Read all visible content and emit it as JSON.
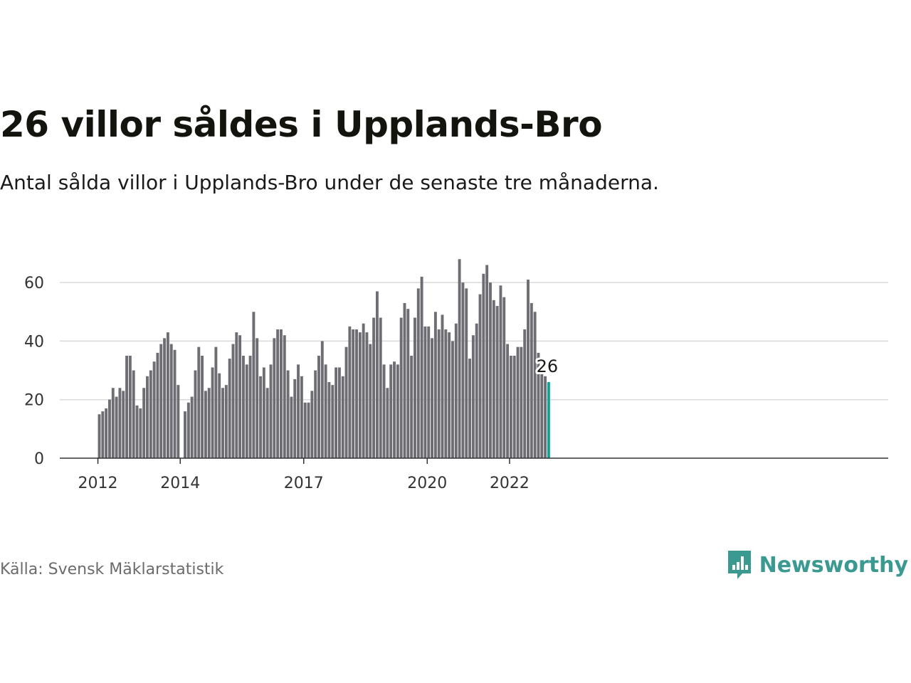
{
  "title": "26 villor såldes i Upplands-Bro",
  "subtitle": "Antal sålda villor i Upplands-Bro under de senaste tre månaderna.",
  "source": "Källa: Svensk Mäklarstatistik",
  "brand": {
    "name": "Newsworthy",
    "color": "#3a9a91",
    "icon": "chart-speech-bubble-icon"
  },
  "colors": {
    "bar": "#6e6d73",
    "highlight": "#10a39c",
    "grid": "#d9d9d9",
    "axis": "#333333",
    "tick_text": "#333333"
  },
  "chart_data": {
    "type": "bar",
    "xlabel": "",
    "ylabel": "",
    "ylim": [
      0,
      70
    ],
    "yticks": [
      0,
      20,
      40,
      60
    ],
    "xticks": [
      "2012",
      "2014",
      "2017",
      "2020",
      "2022"
    ],
    "grid": "horizontal",
    "start": "2012-01",
    "end": "2022-12",
    "categories": [
      "2012-01",
      "2012-02",
      "2012-03",
      "2012-04",
      "2012-05",
      "2012-06",
      "2012-07",
      "2012-08",
      "2012-09",
      "2012-10",
      "2012-11",
      "2012-12",
      "2013-01",
      "2013-02",
      "2013-03",
      "2013-04",
      "2013-05",
      "2013-06",
      "2013-07",
      "2013-08",
      "2013-09",
      "2013-10",
      "2013-11",
      "2013-12",
      "2014-01",
      "2014-02",
      "2014-03",
      "2014-04",
      "2014-05",
      "2014-06",
      "2014-07",
      "2014-08",
      "2014-09",
      "2014-10",
      "2014-11",
      "2014-12",
      "2015-01",
      "2015-02",
      "2015-03",
      "2015-04",
      "2015-05",
      "2015-06",
      "2015-07",
      "2015-08",
      "2015-09",
      "2015-10",
      "2015-11",
      "2015-12",
      "2016-01",
      "2016-02",
      "2016-03",
      "2016-04",
      "2016-05",
      "2016-06",
      "2016-07",
      "2016-08",
      "2016-09",
      "2016-10",
      "2016-11",
      "2016-12",
      "2017-01",
      "2017-02",
      "2017-03",
      "2017-04",
      "2017-05",
      "2017-06",
      "2017-07",
      "2017-08",
      "2017-09",
      "2017-10",
      "2017-11",
      "2017-12",
      "2018-01",
      "2018-02",
      "2018-03",
      "2018-04",
      "2018-05",
      "2018-06",
      "2018-07",
      "2018-08",
      "2018-09",
      "2018-10",
      "2018-11",
      "2018-12",
      "2019-01",
      "2019-02",
      "2019-03",
      "2019-04",
      "2019-05",
      "2019-06",
      "2019-07",
      "2019-08",
      "2019-09",
      "2019-10",
      "2019-11",
      "2019-12",
      "2020-01",
      "2020-02",
      "2020-03",
      "2020-04",
      "2020-05",
      "2020-06",
      "2020-07",
      "2020-08",
      "2020-09",
      "2020-10",
      "2020-11",
      "2020-12",
      "2021-01",
      "2021-02",
      "2021-03",
      "2021-04",
      "2021-05",
      "2021-06",
      "2021-07",
      "2021-08",
      "2021-09",
      "2021-10",
      "2021-11",
      "2021-12",
      "2022-01",
      "2022-02",
      "2022-03",
      "2022-04",
      "2022-05",
      "2022-06",
      "2022-07",
      "2022-08",
      "2022-09",
      "2022-10",
      "2022-11",
      "2022-12"
    ],
    "values": [
      15,
      16,
      17,
      20,
      24,
      21,
      24,
      23,
      35,
      35,
      30,
      18,
      17,
      24,
      28,
      30,
      33,
      36,
      39,
      41,
      43,
      39,
      37,
      25,
      null,
      16,
      19,
      21,
      30,
      38,
      35,
      23,
      24,
      31,
      38,
      29,
      24,
      25,
      34,
      39,
      43,
      42,
      35,
      32,
      35,
      50,
      41,
      28,
      31,
      24,
      32,
      41,
      44,
      44,
      42,
      30,
      21,
      27,
      32,
      28,
      19,
      19,
      23,
      30,
      35,
      40,
      32,
      26,
      25,
      31,
      31,
      28,
      38,
      45,
      44,
      44,
      43,
      46,
      43,
      39,
      48,
      57,
      48,
      32,
      24,
      32,
      33,
      32,
      48,
      53,
      51,
      35,
      48,
      58,
      62,
      45,
      45,
      41,
      50,
      44,
      49,
      44,
      43,
      40,
      46,
      68,
      60,
      58,
      34,
      42,
      46,
      56,
      63,
      66,
      60,
      54,
      52,
      59,
      55,
      39,
      35,
      35,
      38,
      38,
      44,
      61,
      53,
      50,
      36,
      30,
      28,
      26
    ],
    "highlight_index": 131,
    "annotation": "26"
  }
}
